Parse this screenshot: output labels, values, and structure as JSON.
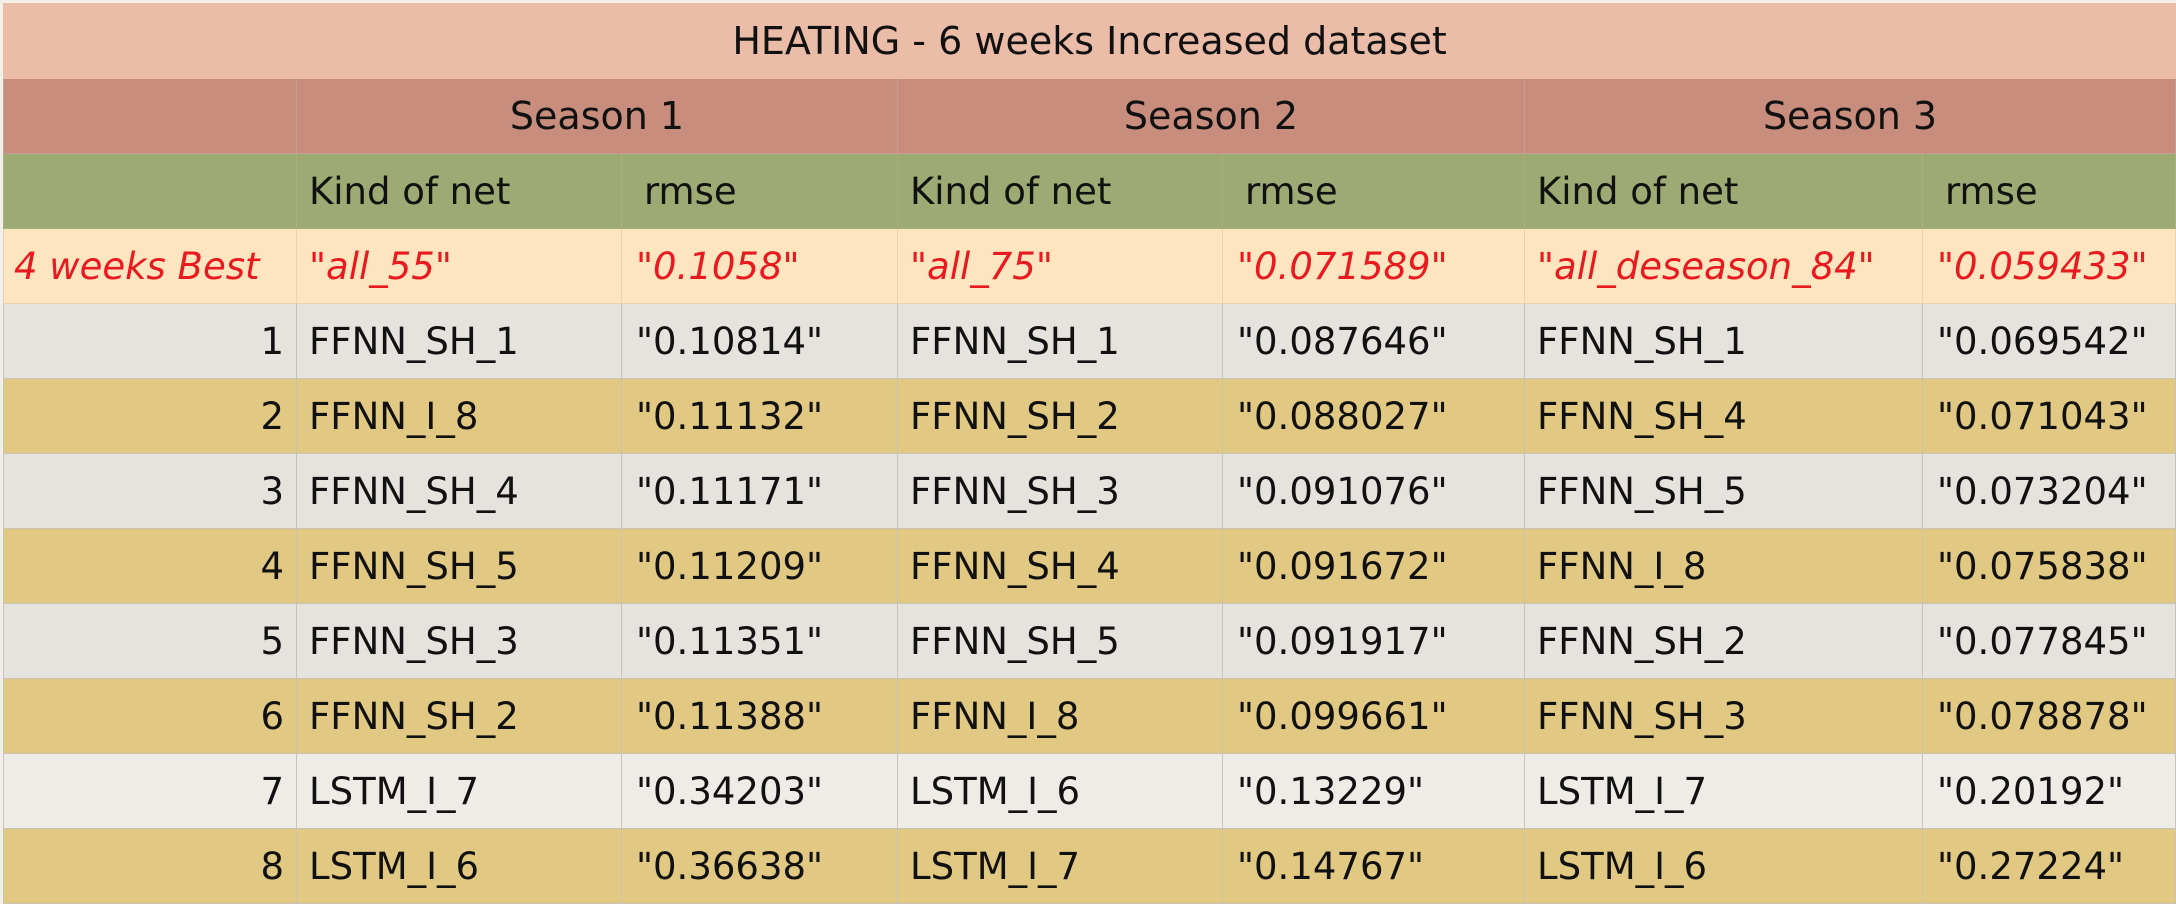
{
  "title": "HEATING - 6 weeks Increased dataset",
  "seasons": [
    "Season 1",
    "Season 2",
    "Season 3"
  ],
  "column_headers": {
    "kind": "Kind of net",
    "rmse": "rmse"
  },
  "best_row": {
    "label": "4 weeks Best",
    "values": [
      "\"all_55\"",
      "\"0.1058\"",
      "\"all_75\"",
      "\"0.071589\"",
      "\"all_deseason_84\"",
      "\"0.059433\""
    ]
  },
  "rows": [
    {
      "rank": "1",
      "cells": [
        "FFNN_SH_1",
        "\"0.10814\"",
        "FFNN_SH_1",
        "\"0.087646\"",
        "FFNN_SH_1",
        "\"0.069542\""
      ]
    },
    {
      "rank": "2",
      "cells": [
        "FFNN_I_8",
        "\"0.11132\"",
        "FFNN_SH_2",
        "\"0.088027\"",
        "FFNN_SH_4",
        "\"0.071043\""
      ]
    },
    {
      "rank": "3",
      "cells": [
        "FFNN_SH_4",
        "\"0.11171\"",
        "FFNN_SH_3",
        "\"0.091076\"",
        "FFNN_SH_5",
        "\"0.073204\""
      ]
    },
    {
      "rank": "4",
      "cells": [
        "FFNN_SH_5",
        "\"0.11209\"",
        "FFNN_SH_4",
        "\"0.091672\"",
        "FFNN_I_8",
        "\"0.075838\""
      ]
    },
    {
      "rank": "5",
      "cells": [
        "FFNN_SH_3",
        "\"0.11351\"",
        "FFNN_SH_5",
        "\"0.091917\"",
        "FFNN_SH_2",
        "\"0.077845\""
      ]
    },
    {
      "rank": "6",
      "cells": [
        "FFNN_SH_2",
        "\"0.11388\"",
        "FFNN_I_8",
        "\"0.099661\"",
        "FFNN_SH_3",
        "\"0.078878\""
      ]
    },
    {
      "rank": "7",
      "cells": [
        "LSTM_I_7",
        "\"0.34203\"",
        "LSTM_I_6",
        "\"0.13229\"",
        "LSTM_I_7",
        "\"0.20192\""
      ]
    },
    {
      "rank": "8",
      "cells": [
        "LSTM_I_6",
        "\"0.36638\"",
        "LSTM_I_7",
        "\"0.14767\"",
        "LSTM_I_6",
        "\"0.27224\""
      ]
    }
  ],
  "colors": {
    "title_bg": "#ebbca7",
    "season_bg": "#c98d7d",
    "header_bg": "#9eaa73",
    "best_bg": "#fde5bf",
    "best_text": "#e8191f",
    "row_light": "#e6e3de",
    "row_gold": "#e2c983"
  }
}
